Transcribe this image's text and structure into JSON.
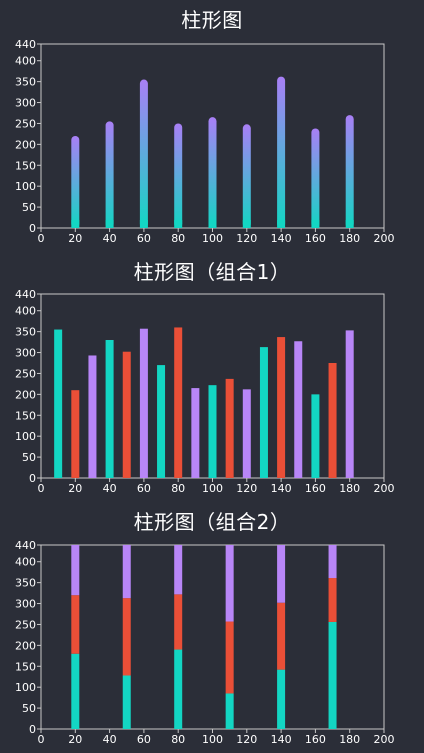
{
  "colors": {
    "background": "#2b2e38",
    "axis": "#c8c8c8",
    "teal": "#13d6c3",
    "orange": "#ea4f37",
    "purple": "#b886f7",
    "gradient_top": "#a97ff6",
    "gradient_bottom": "#13d6c3"
  },
  "chart_data": [
    {
      "type": "bar",
      "title": "柱形图",
      "xlim": [
        0,
        200
      ],
      "ylim": [
        0,
        440
      ],
      "xticks": [
        0,
        20,
        40,
        60,
        80,
        100,
        120,
        140,
        160,
        180,
        200
      ],
      "yticks": [
        0,
        50,
        100,
        150,
        200,
        250,
        300,
        350,
        400,
        440
      ],
      "bar_style": "rounded gradient",
      "series": [
        {
          "color": "gradient",
          "x": [
            20,
            40,
            60,
            80,
            100,
            120,
            140,
            160,
            180
          ],
          "values": [
            220,
            255,
            355,
            250,
            265,
            248,
            362,
            238,
            270
          ]
        }
      ]
    },
    {
      "type": "bar",
      "title": "柱形图（组合1）",
      "xlim": [
        0,
        200
      ],
      "ylim": [
        0,
        440
      ],
      "xticks": [
        0,
        20,
        40,
        60,
        80,
        100,
        120,
        140,
        160,
        180,
        200
      ],
      "yticks": [
        0,
        50,
        100,
        150,
        200,
        250,
        300,
        350,
        400,
        440
      ],
      "series": [
        {
          "color": "#13d6c3",
          "x": [
            10,
            40,
            70,
            100,
            130,
            160
          ],
          "values": [
            355,
            330,
            270,
            222,
            313,
            200
          ]
        },
        {
          "color": "#ea4f37",
          "x": [
            20,
            50,
            80,
            110,
            140,
            170
          ],
          "values": [
            210,
            302,
            360,
            237,
            337,
            275
          ]
        },
        {
          "color": "#b886f7",
          "x": [
            30,
            60,
            90,
            120,
            150,
            180
          ],
          "values": [
            293,
            357,
            215,
            212,
            327,
            353
          ]
        }
      ]
    },
    {
      "type": "bar",
      "stacked": true,
      "title": "柱形图（组合2）",
      "xlim": [
        0,
        200
      ],
      "ylim": [
        0,
        440
      ],
      "xticks": [
        0,
        20,
        40,
        60,
        80,
        100,
        120,
        140,
        160,
        180,
        200
      ],
      "yticks": [
        0,
        50,
        100,
        150,
        200,
        250,
        300,
        350,
        400,
        440
      ],
      "categories": [
        20,
        50,
        80,
        110,
        140,
        170
      ],
      "series": [
        {
          "color": "#13d6c3",
          "values": [
            180,
            128,
            190,
            85,
            142,
            256
          ]
        },
        {
          "color": "#ea4f37",
          "values": [
            140,
            185,
            132,
            172,
            160,
            105
          ]
        },
        {
          "color": "#b886f7",
          "values": [
            120,
            127,
            118,
            183,
            138,
            79
          ]
        }
      ]
    }
  ]
}
